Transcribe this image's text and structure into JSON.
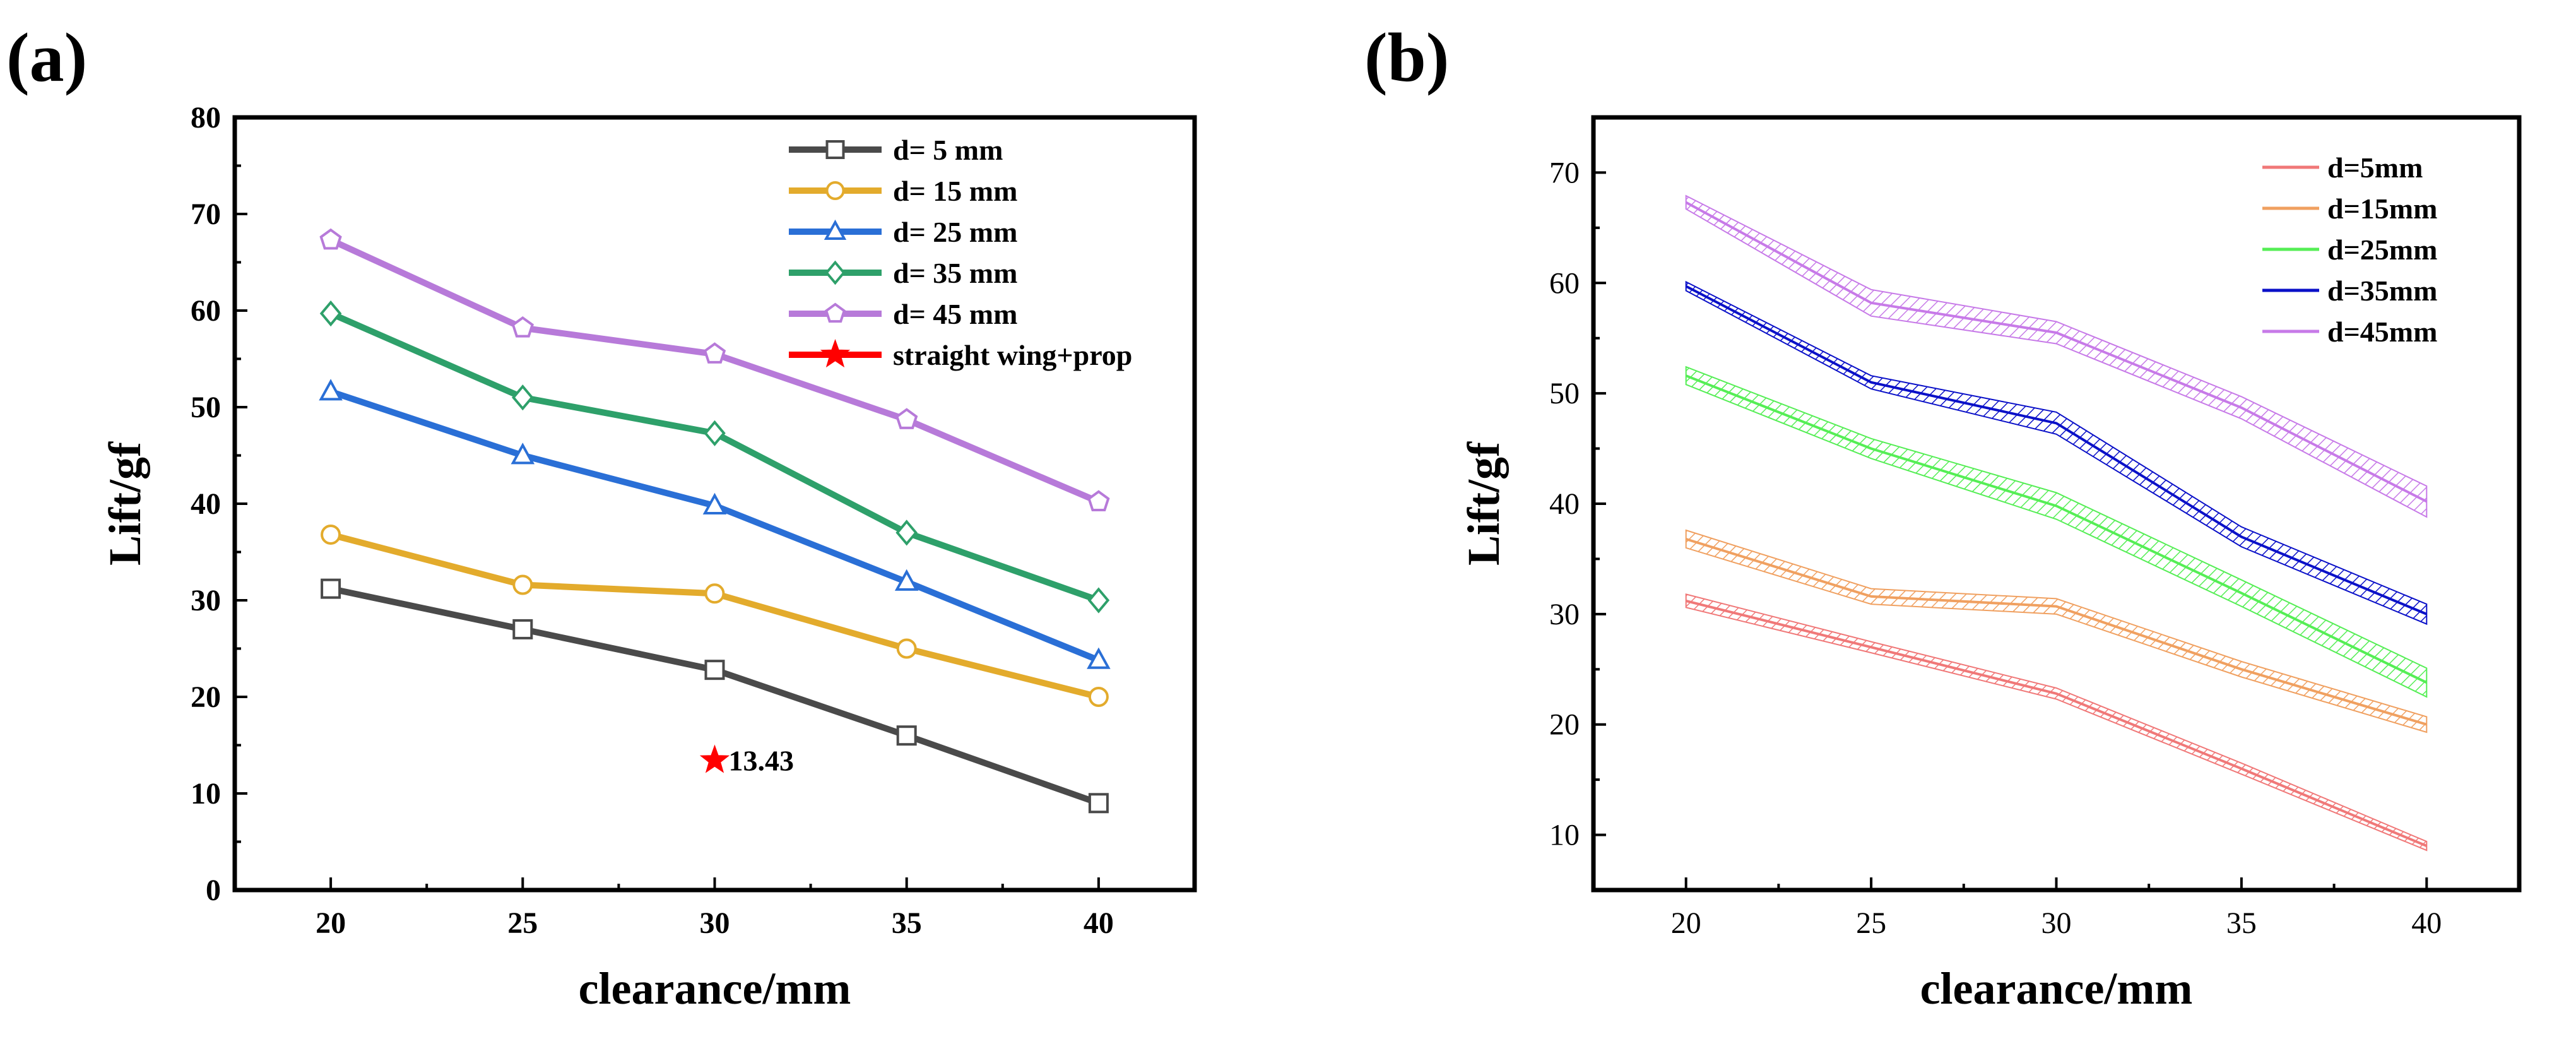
{
  "figure": {
    "panel_a_label": "(a)",
    "panel_b_label": "(b)"
  },
  "chart_data": [
    {
      "type": "line",
      "panel": "(a)",
      "title": "",
      "xlabel": "clearance/mm",
      "ylabel": "Lift/gf",
      "xlim": [
        17.5,
        42.5
      ],
      "ylim": [
        0,
        80
      ],
      "xticks": [
        20,
        25,
        30,
        35,
        40
      ],
      "yticks": [
        0,
        10,
        20,
        30,
        40,
        50,
        60,
        70,
        80
      ],
      "x": [
        20,
        25,
        30,
        35,
        40
      ],
      "legend_position": "top-right",
      "series": [
        {
          "name": "d= 5 mm",
          "color": "#4a4a4a",
          "marker": "square",
          "values": [
            31.2,
            27.0,
            22.8,
            16.0,
            9.0
          ]
        },
        {
          "name": "d= 15 mm",
          "color": "#e3ab2c",
          "marker": "circle",
          "values": [
            36.8,
            31.6,
            30.7,
            25.0,
            20.0
          ]
        },
        {
          "name": "d= 25 mm",
          "color": "#2a6fd6",
          "marker": "triangle",
          "values": [
            51.6,
            45.0,
            39.8,
            31.9,
            23.8
          ]
        },
        {
          "name": "d= 35 mm",
          "color": "#2ea06a",
          "marker": "diamond",
          "values": [
            59.7,
            51.0,
            47.3,
            37.0,
            30.0
          ]
        },
        {
          "name": "d= 45 mm",
          "color": "#b77ad9",
          "marker": "pentagon",
          "values": [
            67.3,
            58.2,
            55.5,
            48.7,
            40.2
          ]
        }
      ],
      "special_point": {
        "name": "straight wing+prop",
        "color": "#ff0000",
        "marker": "star",
        "x": 30,
        "y": 13.43,
        "label": "13.43"
      }
    },
    {
      "type": "line",
      "panel": "(b)",
      "title": "",
      "xlabel": "clearance/mm",
      "ylabel": "Lift/gf",
      "xlim": [
        17.5,
        42.5
      ],
      "ylim": [
        5,
        75
      ],
      "xticks": [
        20,
        25,
        30,
        35,
        40
      ],
      "yticks": [
        10,
        20,
        30,
        40,
        50,
        60,
        70
      ],
      "x": [
        20,
        25,
        30,
        35,
        40
      ],
      "legend_position": "top-right",
      "series": [
        {
          "name": "d=5mm",
          "color": "#f07878",
          "values": [
            31.2,
            27.0,
            22.8,
            16.0,
            9.0
          ],
          "band": [
            0.6,
            0.5,
            0.5,
            0.5,
            0.4
          ]
        },
        {
          "name": "d=15mm",
          "color": "#f0a060",
          "values": [
            36.8,
            31.6,
            30.7,
            25.0,
            20.0
          ],
          "band": [
            0.8,
            0.7,
            0.7,
            0.7,
            0.7
          ]
        },
        {
          "name": "d=25mm",
          "color": "#55ee55",
          "values": [
            51.6,
            45.0,
            39.8,
            31.9,
            23.8
          ],
          "band": [
            0.8,
            0.9,
            1.2,
            1.2,
            1.3
          ]
        },
        {
          "name": "d=35mm",
          "color": "#0a10c8",
          "values": [
            59.7,
            51.0,
            47.3,
            37.0,
            30.0
          ],
          "band": [
            0.4,
            0.6,
            1.0,
            0.9,
            0.9
          ]
        },
        {
          "name": "d=45mm",
          "color": "#c77ae8",
          "values": [
            67.3,
            58.2,
            55.5,
            48.7,
            40.2
          ],
          "band": [
            0.6,
            1.2,
            1.0,
            1.0,
            1.4
          ]
        }
      ]
    }
  ]
}
